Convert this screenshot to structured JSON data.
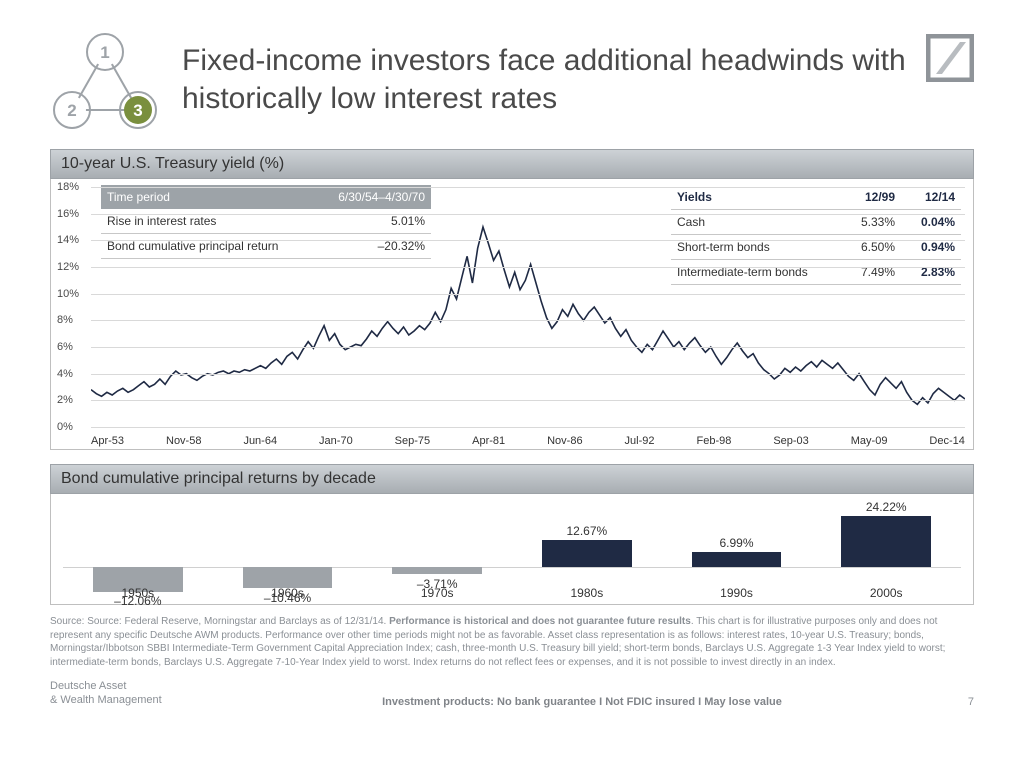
{
  "colors": {
    "title": "#4a4a4a",
    "line": "#1f2a44",
    "bar_negative": "#9ea3a8",
    "bar_positive": "#1f2a44",
    "circle_inactive_fill": "#ffffff",
    "circle_inactive_stroke": "#9ea3a8",
    "circle_inactive_text": "#9ea3a8",
    "circle_active_fill": "#7a8f3e",
    "circle_active_stroke": "#9aa05a",
    "logo_a": "#b8bcc0",
    "logo_b": "#8f9499"
  },
  "header": {
    "title": "Fixed-income investors face additional headwinds with historically low interest rates",
    "nodes": [
      "1",
      "2",
      "3"
    ]
  },
  "chart1": {
    "title": "10-year U.S. Treasury yield (%)",
    "ylim": [
      0,
      18
    ],
    "ytick_step": 2,
    "y_ticks": [
      "0%",
      "2%",
      "4%",
      "6%",
      "8%",
      "10%",
      "12%",
      "14%",
      "16%",
      "18%"
    ],
    "x_labels": [
      "Apr-53",
      "Nov-58",
      "Jun-64",
      "Jan-70",
      "Sep-75",
      "Apr-81",
      "Nov-86",
      "Jul-92",
      "Feb-98",
      "Sep-03",
      "May-09",
      "Dec-14"
    ],
    "overlay_left": {
      "header_label": "Time period",
      "header_value": "6/30/54–4/30/70",
      "rows": [
        {
          "label": "Rise in interest rates",
          "value": "5.01%"
        },
        {
          "label": "Bond cumulative principal return",
          "value": "–20.32%"
        }
      ]
    },
    "overlay_right": {
      "header_label": "Yields",
      "header_c1": "12/99",
      "header_c2": "12/14",
      "rows": [
        {
          "label": "Cash",
          "c1": "5.33%",
          "c2": "0.04%"
        },
        {
          "label": "Short-term bonds",
          "c1": "6.50%",
          "c2": "0.94%"
        },
        {
          "label": "Intermediate-term bonds",
          "c1": "7.49%",
          "c2": "2.83%"
        }
      ]
    },
    "series": [
      2.8,
      2.5,
      2.3,
      2.6,
      2.4,
      2.7,
      2.9,
      2.6,
      2.8,
      3.1,
      3.4,
      3.0,
      3.2,
      3.6,
      3.2,
      3.8,
      4.2,
      3.9,
      4.0,
      3.7,
      3.5,
      3.8,
      4.0,
      3.9,
      4.1,
      4.2,
      4.0,
      4.2,
      4.1,
      4.3,
      4.2,
      4.4,
      4.6,
      4.4,
      4.8,
      5.1,
      4.7,
      5.3,
      5.6,
      5.1,
      5.8,
      6.4,
      5.9,
      6.8,
      7.6,
      6.5,
      7.0,
      6.2,
      5.8,
      6.0,
      6.2,
      6.1,
      6.6,
      7.2,
      6.8,
      7.4,
      7.9,
      7.4,
      7.0,
      7.5,
      6.9,
      7.2,
      7.6,
      7.3,
      7.8,
      8.6,
      7.9,
      8.8,
      10.4,
      9.6,
      11.2,
      12.8,
      10.8,
      13.4,
      15.0,
      13.8,
      12.5,
      13.2,
      11.8,
      10.5,
      11.6,
      10.3,
      11.0,
      12.2,
      10.8,
      9.4,
      8.2,
      7.4,
      7.9,
      8.8,
      8.3,
      9.2,
      8.5,
      8.0,
      8.6,
      9.0,
      8.4,
      7.8,
      8.2,
      7.4,
      6.8,
      7.3,
      6.5,
      6.0,
      5.6,
      6.2,
      5.8,
      6.5,
      7.2,
      6.6,
      6.0,
      6.4,
      5.8,
      6.3,
      6.7,
      6.1,
      5.6,
      6.0,
      5.3,
      4.7,
      5.2,
      5.8,
      6.3,
      5.7,
      5.2,
      5.5,
      4.8,
      4.3,
      4.0,
      3.6,
      3.9,
      4.4,
      4.1,
      4.5,
      4.2,
      4.6,
      4.9,
      4.5,
      5.0,
      4.7,
      4.4,
      4.8,
      4.3,
      3.8,
      3.5,
      4.0,
      3.4,
      2.8,
      2.4,
      3.2,
      3.7,
      3.3,
      2.9,
      3.4,
      2.6,
      2.0,
      1.7,
      2.2,
      1.8,
      2.5,
      2.9,
      2.6,
      2.3,
      2.0,
      2.4,
      2.1
    ]
  },
  "chart2": {
    "title": "Bond cumulative principal returns by decade",
    "baseline_pct": 66,
    "scale_pct_per_unit": 1.9,
    "bars": [
      {
        "cat": "1950s",
        "val": -12.06,
        "label": "–12.06%"
      },
      {
        "cat": "1960s",
        "val": -10.46,
        "label": "–10.46%"
      },
      {
        "cat": "1970s",
        "val": -3.71,
        "label": "–3.71%"
      },
      {
        "cat": "1980s",
        "val": 12.67,
        "label": "12.67%"
      },
      {
        "cat": "1990s",
        "val": 6.99,
        "label": "6.99%"
      },
      {
        "cat": "2000s",
        "val": 24.22,
        "label": "24.22%"
      }
    ]
  },
  "footer": {
    "source": "Source: Source: Federal Reserve, Morningstar and Barclays as of 12/31/14. ",
    "source_bold": "Performance is historical and does not guarantee future results",
    "source_tail": ". This chart is for illustrative purposes only and does not represent any specific Deutsche AWM  products. Performance over other time periods might not be as favorable. Asset class representation is as follows: interest rates, 10-year U.S. Treasury; bonds, Morningstar/Ibbotson SBBI Intermediate-Term Government Capital Appreciation Index; cash, three-month U.S. Treasury bill yield; short-term bonds, Barclays U.S. Aggregate 1-3 Year Index yield to worst; intermediate-term bonds, Barclays U.S. Aggregate 7-10-Year Index yield to worst. Index returns do not reflect fees or expenses, and it is not possible to invest directly in an index.",
    "brand_line1": "Deutsche Asset",
    "brand_line2": "& Wealth Management",
    "disclaimer": "Investment products: No bank guarantee I Not FDIC insured I May lose value",
    "page": "7"
  }
}
